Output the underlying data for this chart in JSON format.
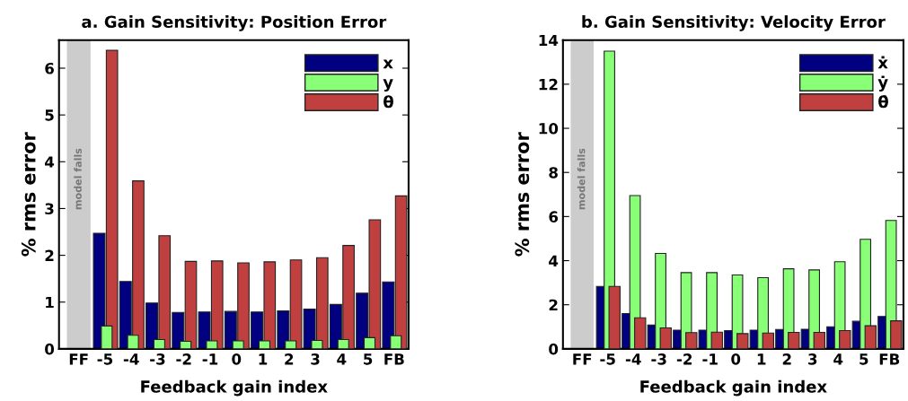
{
  "chart_data": [
    {
      "type": "bar",
      "title": "a. Gain Sensitivity: Position Error",
      "xlabel": "Feedback gain index",
      "ylabel": "% rms error",
      "categories": [
        "FF",
        "-5",
        "-4",
        "-3",
        "-2",
        "-1",
        "0",
        "1",
        "2",
        "3",
        "4",
        "5",
        "FB"
      ],
      "series": [
        {
          "name": "x",
          "color": "#000080",
          "values": [
            null,
            2.47,
            1.44,
            0.98,
            0.78,
            0.79,
            0.8,
            0.79,
            0.81,
            0.85,
            0.95,
            1.19,
            1.43
          ]
        },
        {
          "name": "y",
          "color": "#88ff77",
          "values": [
            null,
            0.49,
            0.29,
            0.2,
            0.16,
            0.17,
            0.17,
            0.17,
            0.17,
            0.18,
            0.2,
            0.24,
            0.28
          ]
        },
        {
          "name": "θ",
          "color": "#c04040",
          "values": [
            null,
            6.38,
            3.59,
            2.42,
            1.87,
            1.88,
            1.84,
            1.86,
            1.9,
            1.95,
            2.21,
            2.76,
            3.27
          ]
        }
      ],
      "ylim": [
        0,
        6.6
      ],
      "yticks": [
        0,
        1,
        2,
        3,
        4,
        5,
        6
      ],
      "bands": [
        {
          "axis": "x",
          "from": "FF",
          "to": "FF",
          "label": "model falls",
          "color": "#cccccc"
        }
      ],
      "legend": "top right",
      "grid": false
    },
    {
      "type": "bar",
      "title": "b. Gain Sensitivity: Velocity Error",
      "xlabel": "Feedback gain index",
      "ylabel": "% rms error",
      "categories": [
        "FF",
        "-5",
        "-4",
        "-3",
        "-2",
        "-1",
        "0",
        "1",
        "2",
        "3",
        "4",
        "5",
        "FB"
      ],
      "series": [
        {
          "name": "ẋ",
          "color": "#000080",
          "values": [
            null,
            2.83,
            1.6,
            1.08,
            0.85,
            0.85,
            0.83,
            0.85,
            0.88,
            0.89,
            1.0,
            1.25,
            1.47
          ]
        },
        {
          "name": "ẏ",
          "color": "#88ff77",
          "values": [
            null,
            13.5,
            6.95,
            4.33,
            3.46,
            3.46,
            3.35,
            3.23,
            3.63,
            3.58,
            3.95,
            4.97,
            5.82
          ]
        },
        {
          "name": "θ̇",
          "color": "#c04040",
          "values": [
            null,
            2.83,
            1.41,
            0.95,
            0.74,
            0.76,
            0.69,
            0.72,
            0.75,
            0.75,
            0.83,
            1.05,
            1.27
          ]
        }
      ],
      "ylim": [
        0,
        14
      ],
      "yticks": [
        0,
        2,
        4,
        6,
        8,
        10,
        12,
        14
      ],
      "bands": [
        {
          "axis": "x",
          "from": "FF",
          "to": "FF",
          "label": "model falls",
          "color": "#cccccc"
        }
      ],
      "legend": "top right",
      "grid": false
    }
  ]
}
